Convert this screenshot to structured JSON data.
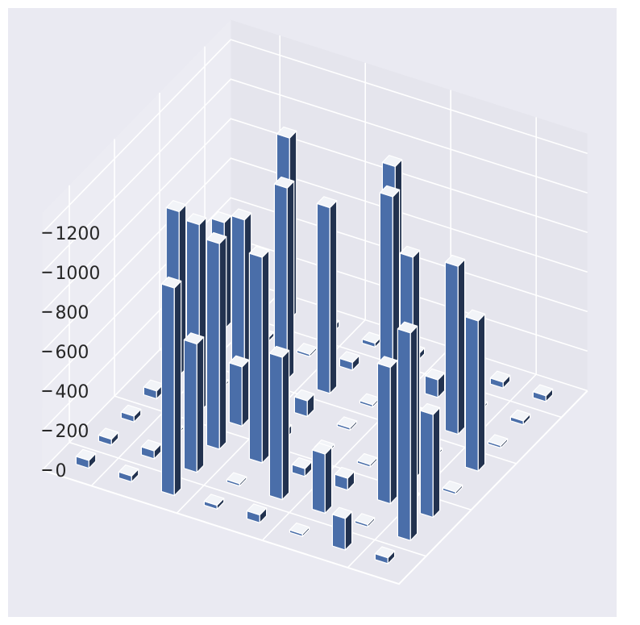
{
  "chart_data": {
    "type": "bar3d",
    "title": "",
    "xlabel": "",
    "ylabel": "",
    "zlabel": "",
    "grid": true,
    "zlim": [
      0,
      1300
    ],
    "z_ticks": [
      0,
      200,
      400,
      600,
      800,
      1000,
      1200
    ],
    "z_tick_labels": [
      "0",
      "200",
      "400",
      "600",
      "800",
      "1000",
      "1200"
    ],
    "bar_color": "#4c72b0",
    "pane_color": "#eaeaf2",
    "grid_color": "#ffffff",
    "values": [
      [
        30,
        1050,
        520,
        0,
        760,
        0,
        20,
        30
      ],
      [
        160,
        0,
        690,
        1130,
        0,
        850,
        0,
        30
      ],
      [
        0,
        300,
        60,
        0,
        1250,
        30,
        90,
        0
      ],
      [
        40,
        720,
        40,
        0,
        0,
        0,
        1100,
        30
      ],
      [
        20,
        0,
        1040,
        40,
        80,
        940,
        40,
        20
      ],
      [
        1050,
        650,
        1040,
        300,
        40,
        970,
        0,
        30
      ],
      [
        30,
        40,
        0,
        950,
        0,
        740,
        20,
        920
      ],
      [
        40,
        30,
        30,
        40,
        830,
        0,
        540,
        30
      ]
    ]
  }
}
